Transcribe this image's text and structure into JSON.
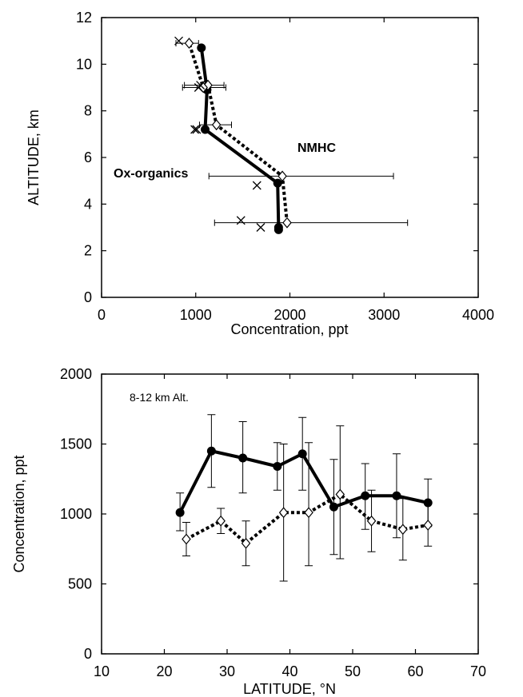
{
  "chart_data": [
    {
      "type": "line",
      "orientation": "vertical-profile",
      "title": "",
      "xlabel": "Concentration, ppt",
      "ylabel": "ALTITUDE, km",
      "xlim": [
        0,
        4000
      ],
      "ylim": [
        0,
        12
      ],
      "xticks": [
        "0",
        "1000",
        "2000",
        "3000",
        "4000"
      ],
      "yticks": [
        "0",
        "2",
        "4",
        "6",
        "8",
        "10",
        "12"
      ],
      "grid": false,
      "annotations": [
        "Ox-organics",
        "NMHC"
      ],
      "series": [
        {
          "name": "Ox-organics",
          "style": "solid-filled-circle",
          "color": "#000000",
          "x": [
            1880,
            1880,
            1870,
            1100,
            1120,
            1060
          ],
          "y": [
            2.9,
            3.0,
            4.9,
            7.2,
            8.9,
            10.7
          ]
        },
        {
          "name": "NMHC",
          "style": "dotted-open-diamond",
          "color": "#000000",
          "x": [
            1970,
            1920,
            1220,
            1130,
            1080,
            930
          ],
          "y": [
            3.2,
            5.2,
            7.4,
            9.1,
            9.0,
            10.9
          ],
          "xerr_low": [
            1200,
            1140,
            1040,
            880,
            860,
            790
          ],
          "xerr_high": [
            3250,
            3100,
            1380,
            1300,
            1320,
            1030
          ]
        },
        {
          "name": "",
          "style": "cross-markers",
          "color": "#000000",
          "x": [
            1690,
            1480,
            1650,
            1010,
            1030,
            1050,
            990,
            820
          ],
          "y": [
            3.0,
            3.3,
            4.8,
            7.2,
            9.0,
            9.1,
            7.2,
            11.0
          ]
        }
      ]
    },
    {
      "type": "line",
      "title": "",
      "xlabel": "LATITUDE, °N",
      "ylabel": "Concentration, ppt",
      "xlim": [
        10,
        70
      ],
      "ylim": [
        0,
        2000
      ],
      "xticks": [
        "10",
        "20",
        "30",
        "40",
        "50",
        "60",
        "70"
      ],
      "yticks": [
        "0",
        "500",
        "1000",
        "1500",
        "2000"
      ],
      "grid": false,
      "annotations": [
        "8-12 km Alt."
      ],
      "series": [
        {
          "name": "",
          "style": "solid-filled-circle",
          "color": "#000000",
          "x": [
            22.5,
            27.5,
            32.5,
            38,
            42,
            47,
            52,
            57,
            62
          ],
          "y": [
            1010,
            1450,
            1400,
            1340,
            1430,
            1050,
            1130,
            1130,
            1080
          ],
          "yerr_low": [
            880,
            1190,
            1150,
            1170,
            1170,
            710,
            890,
            830,
            910
          ],
          "yerr_high": [
            1150,
            1710,
            1660,
            1510,
            1690,
            1390,
            1360,
            1430,
            1250
          ]
        },
        {
          "name": "",
          "style": "dotted-open-diamond",
          "color": "#000000",
          "x": [
            23.5,
            29,
            33,
            39,
            43,
            48,
            53,
            58,
            62
          ],
          "y": [
            820,
            950,
            790,
            1010,
            1010,
            1140,
            950,
            890,
            920
          ],
          "yerr_low": [
            700,
            860,
            630,
            520,
            630,
            680,
            730,
            670,
            770
          ],
          "yerr_high": [
            940,
            1040,
            950,
            1500,
            1510,
            1630,
            1170,
            1110,
            1080
          ]
        }
      ]
    }
  ]
}
